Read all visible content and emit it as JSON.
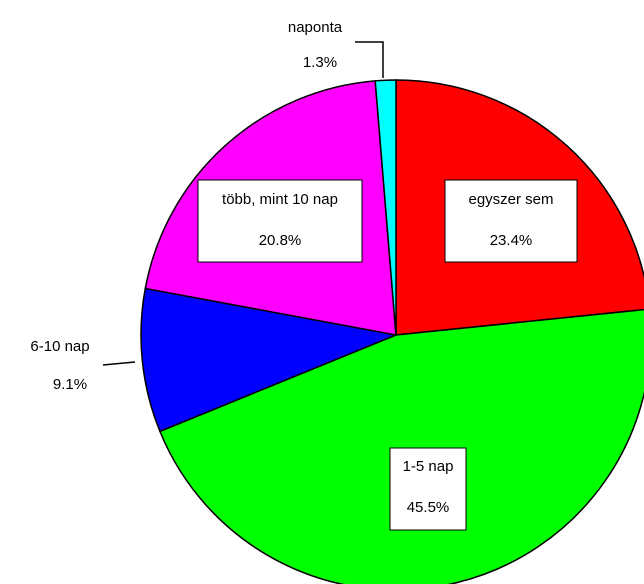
{
  "chart_data": {
    "type": "pie",
    "categories": [
      "egyszer sem",
      "1-5 nap",
      "6-10 nap",
      "több, mint 10 nap",
      "naponta"
    ],
    "values": [
      23.4,
      45.5,
      9.1,
      20.8,
      1.3
    ],
    "value_labels": [
      "23.4%",
      "45.5%",
      "9.1%",
      "20.8%",
      "1.3%"
    ],
    "colors": [
      "#ff0000",
      "#00ff00",
      "#0000ff",
      "#ff00ff",
      "#00ffff"
    ]
  }
}
